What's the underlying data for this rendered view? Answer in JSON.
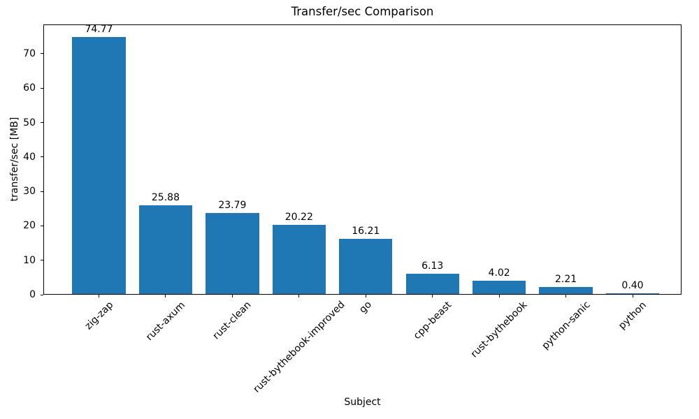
{
  "chart_data": {
    "type": "bar",
    "title": "Transfer/sec Comparison",
    "xlabel": "Subject",
    "ylabel": "transfer/sec [MB]",
    "categories": [
      "zig-zap",
      "rust-axum",
      "rust-clean",
      "rust-bythebook-improved",
      "go",
      "cpp-beast",
      "rust-bythebook",
      "python-sanic",
      "python"
    ],
    "values": [
      74.77,
      25.88,
      23.79,
      20.22,
      16.21,
      6.13,
      4.02,
      2.21,
      0.4
    ],
    "value_labels": [
      "74.77",
      "25.88",
      "23.79",
      "20.22",
      "16.21",
      "6.13",
      "4.02",
      "2.21",
      "0.40"
    ],
    "bar_color": "#1f77b4",
    "axis_color": "#000000",
    "text_color": "#000000",
    "background": "#ffffff",
    "ylim": [
      0,
      78.51
    ],
    "yticks": [
      0,
      10,
      20,
      30,
      40,
      50,
      60,
      70
    ],
    "grid": false,
    "legend_position": "none",
    "x_tick_rotation_deg": 45,
    "bar_width_fraction": 0.8
  }
}
